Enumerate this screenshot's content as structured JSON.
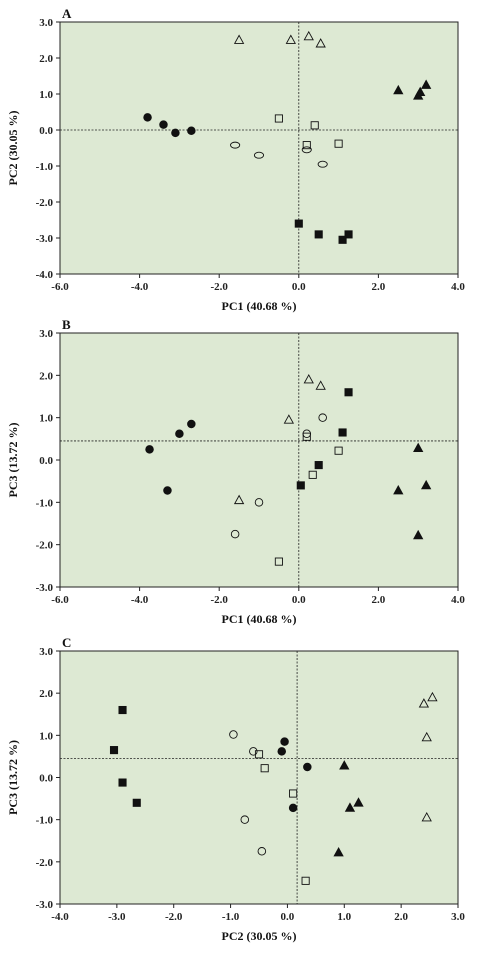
{
  "colors": {
    "plot_bg": "#dde9d3",
    "marker": "#111111",
    "axis": "#222222"
  },
  "chart_data": [
    {
      "type": "scatter",
      "panel": "A",
      "xlabel": "PC1 (40.68 %)",
      "ylabel": "PC2 (30.05 %)",
      "xlim": [
        -6.0,
        4.0
      ],
      "ylim": [
        -4.0,
        3.0
      ],
      "xticks": [
        "-6.0",
        "-4.0",
        "-2.0",
        "0.0",
        "2.0",
        "4.0"
      ],
      "yticks": [
        "3.0",
        "2.0",
        "1.0",
        "0.0",
        "-1.0",
        "-2.0",
        "-3.0",
        "-4.0"
      ],
      "ref_x": 0.0,
      "ref_y": 0.0,
      "series": [
        {
          "marker": "filled-circle",
          "points": [
            [
              -3.8,
              0.35
            ],
            [
              -3.4,
              0.15
            ],
            [
              -3.1,
              -0.08
            ],
            [
              -2.7,
              -0.02
            ]
          ]
        },
        {
          "marker": "open-ellipse",
          "points": [
            [
              -1.6,
              -0.42
            ],
            [
              -1.0,
              -0.7
            ],
            [
              0.2,
              -0.55
            ],
            [
              0.6,
              -0.95
            ]
          ]
        },
        {
          "marker": "open-square",
          "points": [
            [
              -0.5,
              0.32
            ],
            [
              0.4,
              0.13
            ],
            [
              0.2,
              -0.42
            ],
            [
              1.0,
              -0.38
            ]
          ]
        },
        {
          "marker": "filled-square",
          "points": [
            [
              0.0,
              -2.6
            ],
            [
              0.5,
              -2.9
            ],
            [
              1.1,
              -3.05
            ],
            [
              1.25,
              -2.9
            ]
          ]
        },
        {
          "marker": "open-triangle",
          "points": [
            [
              -1.5,
              2.5
            ],
            [
              -0.2,
              2.5
            ],
            [
              0.25,
              2.6
            ],
            [
              0.55,
              2.4
            ]
          ]
        },
        {
          "marker": "filled-triangle",
          "points": [
            [
              2.5,
              1.1
            ],
            [
              3.0,
              0.95
            ],
            [
              3.05,
              1.05
            ],
            [
              3.2,
              1.25
            ]
          ]
        }
      ]
    },
    {
      "type": "scatter",
      "panel": "B",
      "xlabel": "PC1 (40.68 %)",
      "ylabel": "PC3 (13.72 %)",
      "xlim": [
        -6.0,
        4.0
      ],
      "ylim": [
        -3.0,
        3.0
      ],
      "xticks": [
        "-6.0",
        "-4.0",
        "-2.0",
        "0.0",
        "2.0",
        "4.0"
      ],
      "yticks": [
        "3.0",
        "2.0",
        "1.0",
        "0.0",
        "-1.0",
        "-2.0",
        "-3.0"
      ],
      "ref_x": 0.0,
      "ref_y": 0.45,
      "series": [
        {
          "marker": "filled-circle",
          "points": [
            [
              -3.75,
              0.25
            ],
            [
              -3.3,
              -0.72
            ],
            [
              -3.0,
              0.62
            ],
            [
              -2.7,
              0.85
            ]
          ]
        },
        {
          "marker": "open-circle",
          "points": [
            [
              -1.6,
              -1.75
            ],
            [
              -1.0,
              -1.0
            ],
            [
              0.2,
              0.62
            ],
            [
              0.6,
              1.0
            ]
          ]
        },
        {
          "marker": "open-square",
          "points": [
            [
              -0.5,
              -2.4
            ],
            [
              0.2,
              0.55
            ],
            [
              0.35,
              -0.35
            ],
            [
              1.0,
              0.22
            ]
          ]
        },
        {
          "marker": "filled-square",
          "points": [
            [
              0.05,
              -0.6
            ],
            [
              0.5,
              -0.12
            ],
            [
              1.1,
              0.65
            ],
            [
              1.25,
              1.6
            ]
          ]
        },
        {
          "marker": "open-triangle",
          "points": [
            [
              -1.5,
              -0.95
            ],
            [
              -0.25,
              0.95
            ],
            [
              0.25,
              1.9
            ],
            [
              0.55,
              1.75
            ]
          ]
        },
        {
          "marker": "filled-triangle",
          "points": [
            [
              2.5,
              -0.72
            ],
            [
              3.0,
              0.28
            ],
            [
              3.0,
              -1.78
            ],
            [
              3.2,
              -0.6
            ]
          ]
        }
      ]
    },
    {
      "type": "scatter",
      "panel": "C",
      "xlabel": "PC2 (30.05 %)",
      "ylabel": "PC3 (13.72 %)",
      "xlim": [
        -4.0,
        3.0
      ],
      "ylim": [
        -3.0,
        3.0
      ],
      "xticks": [
        "-4.0",
        "-3.0",
        "-2.0",
        "-1.0",
        "0.0",
        "1.0",
        "2.0",
        "3.0"
      ],
      "yticks": [
        "3.0",
        "2.0",
        "1.0",
        "0.0",
        "-1.0",
        "-2.0",
        "-3.0"
      ],
      "ref_x": 0.17,
      "ref_y": 0.45,
      "series": [
        {
          "marker": "filled-square",
          "points": [
            [
              -2.9,
              1.6
            ],
            [
              -3.05,
              0.65
            ],
            [
              -2.9,
              -0.12
            ],
            [
              -2.65,
              -0.6
            ]
          ]
        },
        {
          "marker": "open-circle",
          "points": [
            [
              -0.95,
              1.02
            ],
            [
              -0.6,
              0.62
            ],
            [
              -0.75,
              -1.0
            ],
            [
              -0.45,
              -1.75
            ]
          ]
        },
        {
          "marker": "open-square",
          "points": [
            [
              -0.5,
              0.55
            ],
            [
              -0.4,
              0.22
            ],
            [
              0.1,
              -0.38
            ],
            [
              0.32,
              -2.45
            ]
          ]
        },
        {
          "marker": "filled-circle",
          "points": [
            [
              -0.05,
              0.85
            ],
            [
              -0.1,
              0.62
            ],
            [
              0.1,
              -0.72
            ],
            [
              0.35,
              0.25
            ]
          ]
        },
        {
          "marker": "filled-triangle",
          "points": [
            [
              1.0,
              0.28
            ],
            [
              1.1,
              -0.72
            ],
            [
              1.25,
              -0.6
            ],
            [
              0.9,
              -1.78
            ]
          ]
        },
        {
          "marker": "open-triangle",
          "points": [
            [
              2.4,
              1.75
            ],
            [
              2.55,
              1.9
            ],
            [
              2.45,
              0.95
            ],
            [
              2.45,
              -0.95
            ]
          ]
        }
      ]
    }
  ]
}
